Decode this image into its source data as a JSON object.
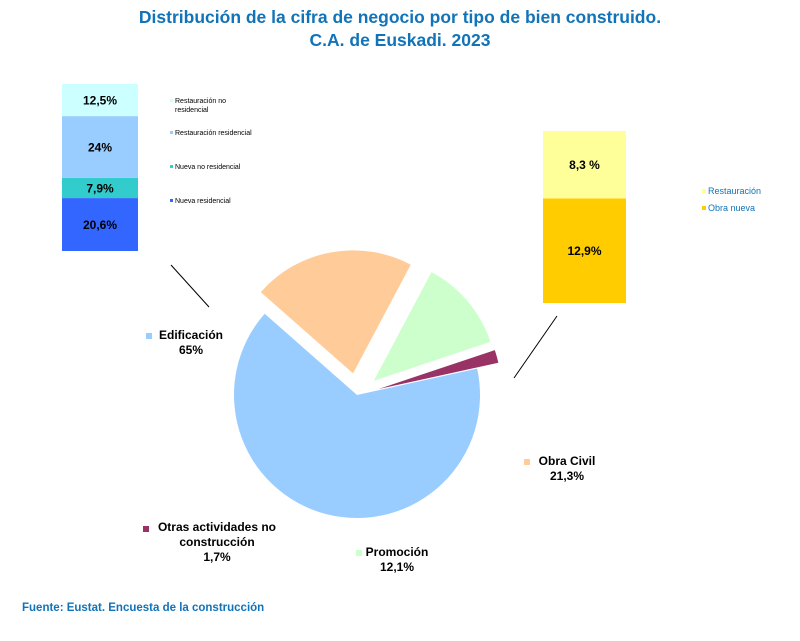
{
  "title_line1": "Distribución de la cifra de negocio por tipo de bien construido.",
  "title_line2": "C.A. de Euskadi. 2023",
  "source": "Fuente: Eustat. Encuesta de la construcción",
  "chart_data": [
    {
      "type": "pie",
      "slices": [
        {
          "name": "Edificación",
          "value": 65,
          "label_value": "65%",
          "color": "#99ccff",
          "exploded": false
        },
        {
          "name": "Obra Civil",
          "value": 21.3,
          "label_value": "21,3%",
          "color": "#ffcc99",
          "exploded": true
        },
        {
          "name": "Promoción",
          "value": 12.1,
          "label_value": "12,1%",
          "color": "#ccffcc",
          "exploded": true
        },
        {
          "name": "Otras actividades no construcción",
          "value": 1.7,
          "label_value": "1,7%",
          "color": "#993366",
          "exploded": true
        }
      ]
    },
    {
      "type": "bar",
      "stacked": true,
      "parent": "Edificación",
      "segments": [
        {
          "name": "Nueva residencial",
          "value": 20.6,
          "label": "20,6%",
          "color": "#3366ff"
        },
        {
          "name": "Nueva no residencial",
          "value": 7.9,
          "label": "7,9%",
          "color": "#33cccc"
        },
        {
          "name": "Restauración residencial",
          "value": 24,
          "label": "24%",
          "color": "#99ccff"
        },
        {
          "name": "Restauración no residencial",
          "value": 12.5,
          "label": "12,5%",
          "color": "#ccffff"
        }
      ],
      "legend": [
        "Restauración no residencial",
        "Restauración residencial",
        "Nueva no residencial",
        "Nueva residencial"
      ]
    },
    {
      "type": "bar",
      "stacked": true,
      "parent": "Obra Civil",
      "segments": [
        {
          "name": "Obra nueva",
          "value": 12.9,
          "label": "12,9%",
          "color": "#ffcc00"
        },
        {
          "name": "Restauración",
          "value": 8.3,
          "label": "8,3 %",
          "color": "#ffff99"
        }
      ],
      "legend": [
        "Restauración",
        "Obra nueva"
      ]
    }
  ]
}
